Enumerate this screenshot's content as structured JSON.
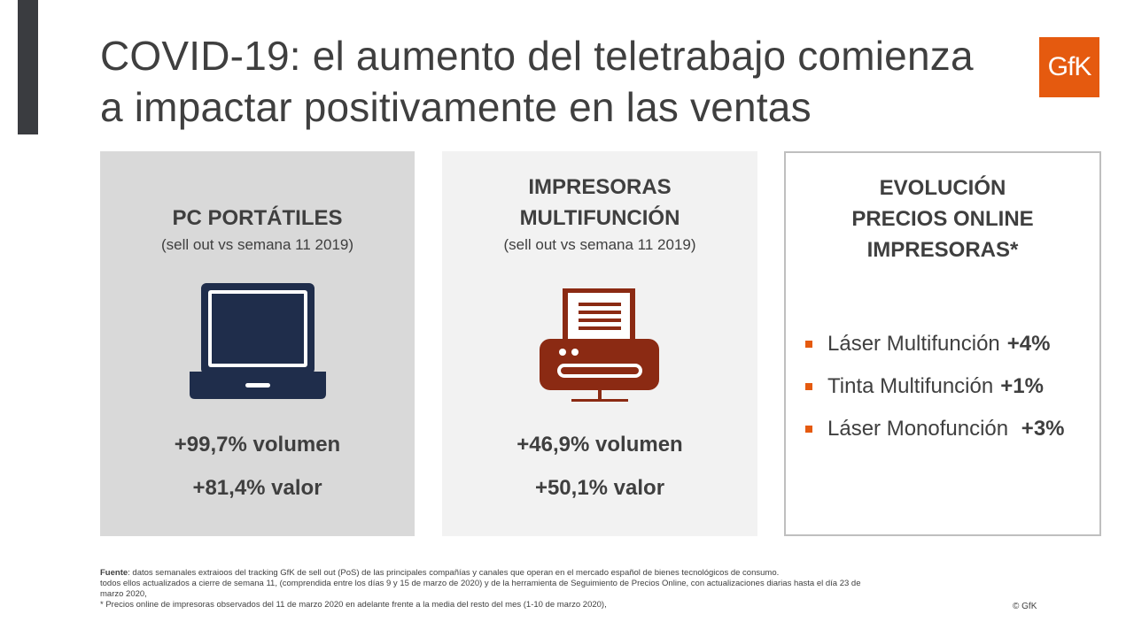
{
  "slide": {
    "title_line1": "COVID-19: el aumento del teletrabajo comienza",
    "title_line2": "a  impactar positivamente en las ventas",
    "logo_text": "GfK"
  },
  "panels": [
    {
      "heading_lines": [
        "PC PORTÁTILES"
      ],
      "subtitle": "(sell out vs semana 11 2019)",
      "icon": "laptop-icon",
      "stats": [
        "+99,7% volumen",
        "+81,4% valor"
      ]
    },
    {
      "heading_lines": [
        "IMPRESORAS",
        "MULTIFUNCIÓN"
      ],
      "subtitle": "(sell out vs semana 11 2019)",
      "icon": "printer-icon",
      "stats": [
        "+46,9% volumen",
        "+50,1% valor"
      ]
    },
    {
      "heading_lines": [
        "EVOLUCIÓN",
        "PRECIOS ONLINE",
        "IMPRESORAS*"
      ],
      "bullets": [
        {
          "label": "Láser Multifunción",
          "value": "+4%"
        },
        {
          "label": "Tinta Multifunción",
          "value": "+1%"
        },
        {
          "label": "Láser Monofunción ",
          "value": "+3%"
        }
      ]
    }
  ],
  "footnote": {
    "source_label": "Fuente",
    "line1": ": datos semanales extraioos del tracking GfK de sell out (PoS) de las principales compañías y canales que operan en el mercado español de bienes tecnológicos de consumo.",
    "line2": "todos ellos actualizados a cierre de semana 11, (comprendida entre los días 9 y 15 de marzo de 2020) y de la herramienta de Seguimiento de Precios Online, con actualizaciones diarias hasta el día 23 de marzo 2020,",
    "line3": "* Precios online  de impresoras observados del 11 de marzo 2020 en adelante frente a la media del resto del mes (1-10 de marzo 2020),"
  },
  "copyright": "© GfK",
  "colors": {
    "accent_bar": "#3a3c40",
    "brand_orange": "#e55a0f",
    "laptop_navy": "#1f2d4b",
    "printer_red": "#8b2a13",
    "panel1_bg": "#d9d9d9",
    "panel2_bg": "#f2f2f2"
  }
}
